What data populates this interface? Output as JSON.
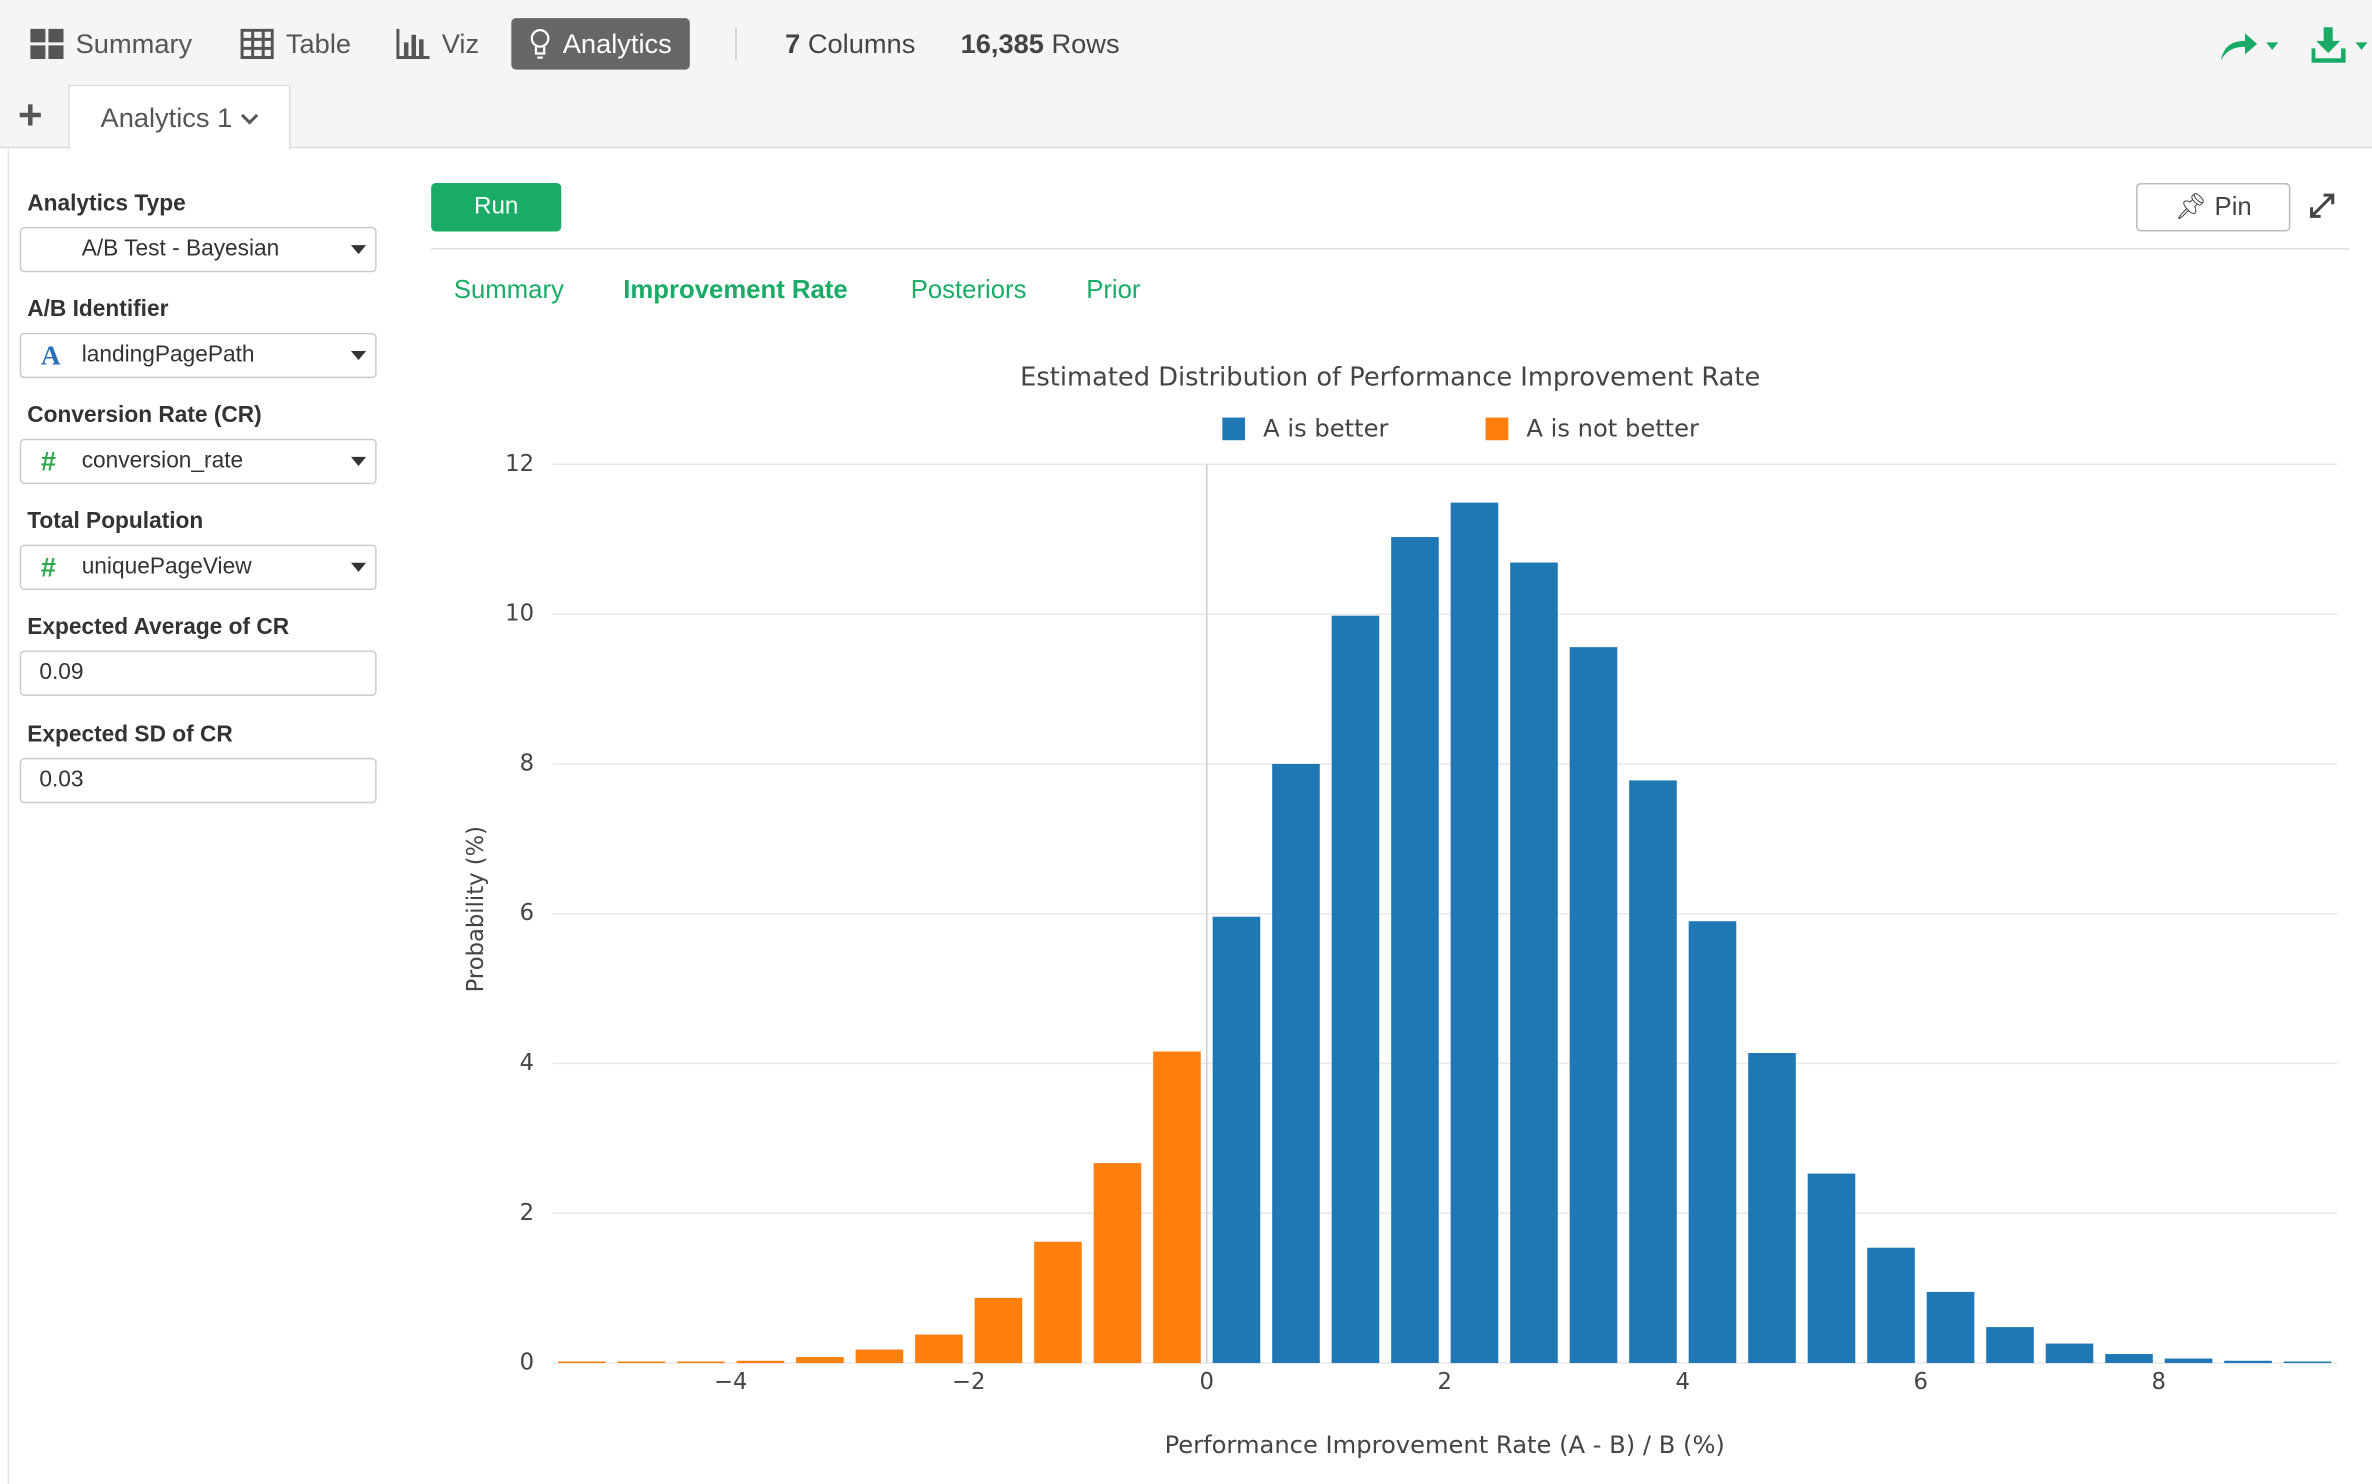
{
  "toolbar": {
    "tabs": [
      "Summary",
      "Table",
      "Viz",
      "Analytics"
    ],
    "columns_count": "7",
    "columns_label": "Columns",
    "rows_count": "16,385",
    "rows_label": "Rows"
  },
  "sheet_tab": "Analytics 1",
  "sidebar": {
    "fields": [
      {
        "label": "Analytics Type",
        "value": "A/B Test - Bayesian"
      },
      {
        "label": "A/B Identifier",
        "value": "landingPagePath"
      },
      {
        "label": "Conversion Rate (CR)",
        "value": "conversion_rate"
      },
      {
        "label": "Total Population",
        "value": "uniquePageView"
      },
      {
        "label": "Expected Average of CR",
        "value": "0.09"
      },
      {
        "label": "Expected SD of CR",
        "value": "0.03"
      }
    ]
  },
  "run_button": "Run",
  "pin_button": "Pin",
  "result_tabs": [
    "Summary",
    "Improvement Rate",
    "Posteriors",
    "Prior"
  ],
  "chart_data": {
    "type": "bar",
    "title": "Estimated Distribution of Performance Improvement Rate",
    "x_label": "Performance Improvement Rate (A - B) / B (%)",
    "y_label": "Probability (%)",
    "series": [
      {
        "name": "A is better",
        "color": "#1f77b4",
        "x": [
          0.25,
          0.75,
          1.25,
          1.75,
          2.25,
          2.75,
          3.25,
          3.75,
          4.25,
          4.75,
          5.25,
          5.75,
          6.25,
          6.75,
          7.25,
          7.75,
          8.25,
          8.75,
          9.25
        ],
        "values": [
          5.96,
          8.0,
          9.98,
          11.03,
          11.49,
          10.69,
          9.56,
          7.78,
          5.9,
          4.14,
          2.53,
          1.54,
          0.95,
          0.48,
          0.26,
          0.12,
          0.06,
          0.03,
          0.02
        ]
      },
      {
        "name": "A is not better",
        "color": "#ff7f0e",
        "x": [
          -5.25,
          -4.75,
          -4.25,
          -3.75,
          -3.25,
          -2.75,
          -2.25,
          -1.75,
          -1.25,
          -0.75,
          -0.25
        ],
        "values": [
          0.02,
          0.02,
          0.02,
          0.03,
          0.08,
          0.18,
          0.38,
          0.87,
          1.62,
          2.67,
          4.16
        ]
      }
    ],
    "xlim": [
      -5.5,
      9.5
    ],
    "xticks": [
      {
        "value": -4,
        "label": "−4"
      },
      {
        "value": -2,
        "label": "−2"
      },
      0,
      2,
      4,
      6,
      8
    ],
    "ylim": [
      0,
      12
    ],
    "yticks": [
      0,
      2,
      4,
      6,
      8,
      10,
      12
    ],
    "grid": true
  }
}
